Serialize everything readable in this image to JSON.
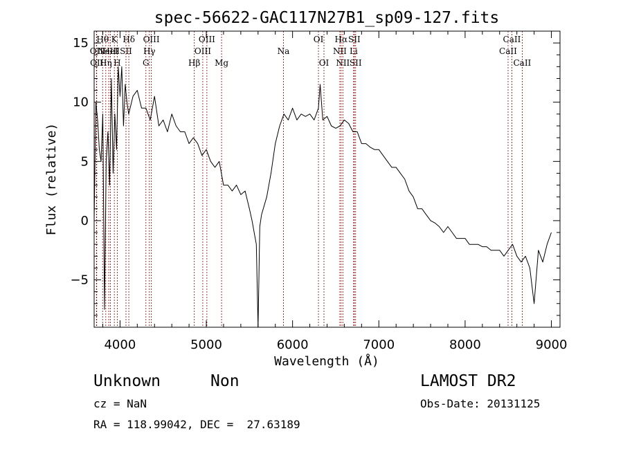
{
  "chart_data": {
    "type": "line",
    "title": "spec-56622-GAC117N27B1_sp09-127.fits",
    "xlabel": "Wavelength (Å)",
    "ylabel": "Flux (relative)",
    "xlim": [
      3700,
      9100
    ],
    "ylim": [
      -9,
      16
    ],
    "xticks": [
      {
        "value": 4000,
        "label": "4000"
      },
      {
        "value": 5000,
        "label": "5000"
      },
      {
        "value": 6000,
        "label": "6000"
      },
      {
        "value": 7000,
        "label": "7000"
      },
      {
        "value": 8000,
        "label": "8000"
      },
      {
        "value": 9000,
        "label": "9000"
      }
    ],
    "yticks": [
      {
        "value": 15,
        "label": "15"
      },
      {
        "value": 10,
        "label": "10"
      },
      {
        "value": 5,
        "label": "5"
      },
      {
        "value": 0,
        "label": "0"
      },
      {
        "value": -5,
        "label": "−5"
      }
    ],
    "line_color": "#000000",
    "marker_color": "#8b0000",
    "spectral_lines": [
      {
        "wavelength": 3727,
        "label": "OII",
        "row": 2
      },
      {
        "wavelength": 3730,
        "label": "OII",
        "row": 3
      },
      {
        "wavelength": 3798,
        "label": "Hθ",
        "row": 1
      },
      {
        "wavelength": 3835,
        "label": "Hη",
        "row": 3
      },
      {
        "wavelength": 3869,
        "label": "NeIII",
        "row": 2
      },
      {
        "wavelength": 3889,
        "label": "HeI",
        "row": 2
      },
      {
        "wavelength": 3934,
        "label": "K",
        "row": 1
      },
      {
        "wavelength": 3968,
        "label": "H",
        "row": 3
      },
      {
        "wavelength": 4069,
        "label": "SII",
        "row": 2
      },
      {
        "wavelength": 4102,
        "label": "Hδ",
        "row": 1
      },
      {
        "wavelength": 4300,
        "label": "G",
        "row": 3
      },
      {
        "wavelength": 4340,
        "label": "Hγ",
        "row": 2
      },
      {
        "wavelength": 4363,
        "label": "OIII",
        "row": 1
      },
      {
        "wavelength": 4861,
        "label": "Hβ",
        "row": 3
      },
      {
        "wavelength": 4959,
        "label": "OIII",
        "row": 2
      },
      {
        "wavelength": 5007,
        "label": "OIII",
        "row": 1
      },
      {
        "wavelength": 5177,
        "label": "Mg",
        "row": 3
      },
      {
        "wavelength": 5894,
        "label": "Na",
        "row": 2
      },
      {
        "wavelength": 6300,
        "label": "OI",
        "row": 1
      },
      {
        "wavelength": 6364,
        "label": "OI",
        "row": 3
      },
      {
        "wavelength": 6548,
        "label": "NII",
        "row": 2
      },
      {
        "wavelength": 6563,
        "label": "Hα",
        "row": 1
      },
      {
        "wavelength": 6583,
        "label": "NII",
        "row": 3
      },
      {
        "wavelength": 6708,
        "label": "Li",
        "row": 2
      },
      {
        "wavelength": 6716,
        "label": "SII",
        "row": 1
      },
      {
        "wavelength": 6731,
        "label": "SII",
        "row": 3
      },
      {
        "wavelength": 8498,
        "label": "CaII",
        "row": 2
      },
      {
        "wavelength": 8542,
        "label": "CaII",
        "row": 1
      },
      {
        "wavelength": 8662,
        "label": "CaII",
        "row": 3
      }
    ],
    "x": [
      3700,
      3720,
      3740,
      3760,
      3780,
      3800,
      3820,
      3840,
      3860,
      3880,
      3900,
      3920,
      3940,
      3960,
      3980,
      4000,
      4020,
      4040,
      4060,
      4080,
      4100,
      4150,
      4200,
      4250,
      4300,
      4350,
      4400,
      4450,
      4500,
      4550,
      4600,
      4650,
      4700,
      4750,
      4800,
      4850,
      4900,
      4950,
      5000,
      5050,
      5100,
      5150,
      5200,
      5250,
      5300,
      5350,
      5400,
      5450,
      5500,
      5530,
      5560,
      5580,
      5600,
      5620,
      5640,
      5660,
      5700,
      5750,
      5800,
      5850,
      5900,
      5950,
      6000,
      6050,
      6100,
      6150,
      6200,
      6250,
      6300,
      6320,
      6350,
      6400,
      6450,
      6500,
      6550,
      6600,
      6650,
      6700,
      6750,
      6800,
      6850,
      6900,
      6950,
      7000,
      7050,
      7100,
      7150,
      7200,
      7250,
      7300,
      7350,
      7400,
      7450,
      7500,
      7550,
      7600,
      7650,
      7700,
      7750,
      7800,
      7850,
      7900,
      7950,
      8000,
      8050,
      8100,
      8150,
      8200,
      8250,
      8300,
      8350,
      8400,
      8450,
      8500,
      8550,
      8600,
      8650,
      8700,
      8750,
      8800,
      8850,
      8900,
      8950,
      9000
    ],
    "values": [
      0,
      10,
      8.5,
      6,
      5,
      9,
      -7.5,
      5,
      7.5,
      3,
      12,
      4,
      9,
      6,
      13,
      10.5,
      13,
      8,
      11.5,
      10,
      9,
      10.5,
      11,
      9.5,
      9.5,
      8.5,
      10.5,
      8,
      8.5,
      7.5,
      9,
      8,
      7.5,
      7.5,
      6.5,
      7,
      6.5,
      5.5,
      6,
      5,
      4.5,
      5,
      3,
      3,
      2.5,
      3,
      2.2,
      2.5,
      1,
      0,
      -1.2,
      -2,
      -9,
      -0.5,
      0.5,
      1,
      2,
      4,
      6.5,
      8,
      9,
      8.5,
      9.5,
      8.5,
      9,
      8.8,
      9,
      8.5,
      9.5,
      11.5,
      8.5,
      8.8,
      8,
      7.8,
      8,
      8.5,
      8.2,
      7.5,
      7.5,
      6.5,
      6.5,
      6.2,
      6,
      6,
      5.5,
      5,
      4.5,
      4.5,
      4,
      3.5,
      2.5,
      2,
      1,
      1,
      0.5,
      0,
      -0.2,
      -0.5,
      -1,
      -0.5,
      -1,
      -1.5,
      -1.5,
      -1.5,
      -2,
      -2,
      -2,
      -2.2,
      -2.2,
      -2.5,
      -2.5,
      -2.5,
      -3,
      -2.5,
      -2,
      -3,
      -3.5,
      -3,
      -4,
      -7,
      -2.5,
      -3.5,
      -2,
      -1
    ]
  },
  "footer": {
    "object_class": "Unknown",
    "object_subclass": "Non",
    "survey": "LAMOST DR2",
    "redshift": "cz = NaN",
    "obs_date": "Obs-Date: 20131125",
    "coords": "RA = 118.99042, DEC =  27.63189"
  }
}
